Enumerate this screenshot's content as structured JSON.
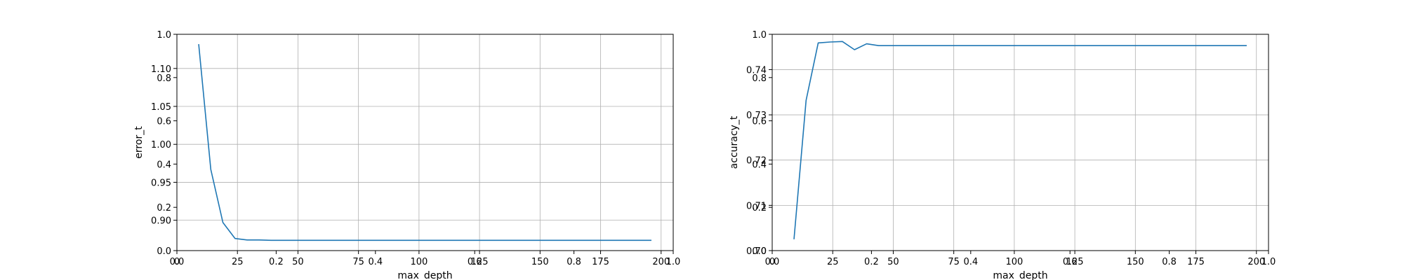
{
  "chart_data": [
    {
      "type": "line",
      "title": "",
      "xlabel": "max_depth",
      "ylabel": "error_t",
      "xlim": [
        0,
        205
      ],
      "ylim": [
        0.86,
        1.145
      ],
      "grid": true,
      "x_ticks": [
        0,
        25,
        50,
        75,
        100,
        125,
        150,
        175,
        200
      ],
      "x_tick_labels": [
        "0",
        "25",
        "50",
        "75",
        "100",
        "125",
        "150",
        "175",
        "200"
      ],
      "y_ticks": [
        0.9,
        0.95,
        1.0,
        1.05,
        1.1
      ],
      "y_tick_labels": [
        "0.90",
        "0.95",
        "1.00",
        "1.05",
        "1.10"
      ],
      "overlay_x_ticks": [
        0.0,
        0.2,
        0.4,
        0.6,
        0.8,
        1.0
      ],
      "overlay_x_tick_labels": [
        "0.0",
        "0.2",
        "0.4",
        "0.6",
        "0.8",
        "1.0"
      ],
      "overlay_y_ticks": [
        0.0,
        0.2,
        0.4,
        0.6,
        0.8,
        1.0
      ],
      "overlay_y_tick_labels": [
        "0.0",
        "0.2",
        "0.4",
        "0.6",
        "0.8",
        "1.0"
      ],
      "series": [
        {
          "color": "#1f77b4",
          "x": [
            9,
            14,
            19,
            24,
            29,
            34,
            39,
            44,
            49,
            54,
            59,
            64,
            69,
            74,
            79,
            84,
            89,
            94,
            99,
            104,
            109,
            114,
            119,
            124,
            129,
            134,
            139,
            144,
            149,
            154,
            159,
            164,
            169,
            174,
            179,
            184,
            189,
            194,
            196
          ],
          "y": [
            1.132,
            0.967,
            0.897,
            0.876,
            0.874,
            0.874,
            0.8735,
            0.8735,
            0.8735,
            0.8735,
            0.8735,
            0.8735,
            0.8735,
            0.8735,
            0.8735,
            0.8735,
            0.8735,
            0.8735,
            0.8735,
            0.8735,
            0.8735,
            0.8735,
            0.8735,
            0.8735,
            0.8735,
            0.8735,
            0.8735,
            0.8735,
            0.8735,
            0.8735,
            0.8735,
            0.8735,
            0.8735,
            0.8735,
            0.8735,
            0.8735,
            0.8735,
            0.8735,
            0.8735
          ]
        }
      ]
    },
    {
      "type": "line",
      "title": "",
      "xlabel": "max_depth",
      "ylabel": "accuracy_t",
      "xlim": [
        0,
        205
      ],
      "ylim": [
        0.7,
        0.7478
      ],
      "grid": true,
      "x_ticks": [
        0,
        25,
        50,
        75,
        100,
        125,
        150,
        175,
        200
      ],
      "x_tick_labels": [
        "0",
        "25",
        "50",
        "75",
        "100",
        "125",
        "150",
        "175",
        "200"
      ],
      "y_ticks": [
        0.7,
        0.71,
        0.72,
        0.73,
        0.74
      ],
      "y_tick_labels": [
        "0.70",
        "0.71",
        "0.72",
        "0.73",
        "0.74"
      ],
      "overlay_x_ticks": [
        0.0,
        0.2,
        0.4,
        0.6,
        0.8,
        1.0
      ],
      "overlay_x_tick_labels": [
        "0.0",
        "0.2",
        "0.4",
        "0.6",
        "0.8",
        "1.0"
      ],
      "overlay_y_ticks": [
        0.0,
        0.2,
        0.4,
        0.6,
        0.8,
        1.0
      ],
      "overlay_y_tick_labels": [
        "0.0",
        "0.2",
        "0.4",
        "0.6",
        "0.8",
        "1.0"
      ],
      "series": [
        {
          "color": "#1f77b4",
          "x": [
            9,
            14,
            19,
            24,
            29,
            34,
            39,
            44,
            49,
            54,
            59,
            64,
            69,
            74,
            79,
            84,
            89,
            94,
            99,
            104,
            109,
            114,
            119,
            124,
            129,
            134,
            139,
            144,
            149,
            154,
            159,
            164,
            169,
            174,
            179,
            184,
            189,
            194,
            196
          ],
          "y": [
            0.7025,
            0.7332,
            0.7459,
            0.7461,
            0.7462,
            0.7444,
            0.7457,
            0.7453,
            0.7453,
            0.7453,
            0.7453,
            0.7453,
            0.7453,
            0.7453,
            0.7453,
            0.7453,
            0.7453,
            0.7453,
            0.7453,
            0.7453,
            0.7453,
            0.7453,
            0.7453,
            0.7453,
            0.7453,
            0.7453,
            0.7453,
            0.7453,
            0.7453,
            0.7453,
            0.7453,
            0.7453,
            0.7453,
            0.7453,
            0.7453,
            0.7453,
            0.7453,
            0.7453,
            0.7453
          ]
        }
      ]
    }
  ]
}
